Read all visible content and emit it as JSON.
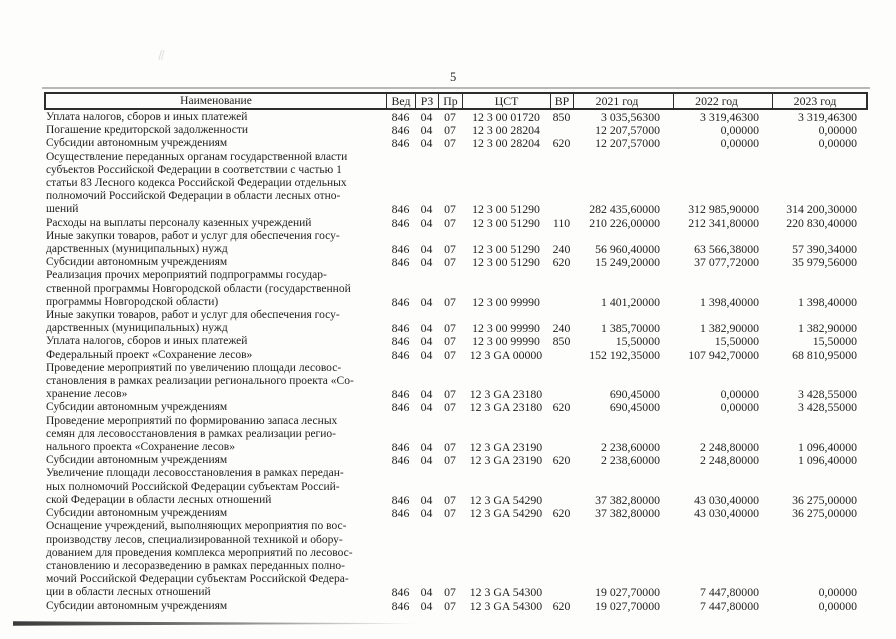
{
  "page": {
    "number": "5"
  },
  "table": {
    "columns": [
      {
        "key": "name",
        "label": "Наименование"
      },
      {
        "key": "ved",
        "label": "Вед"
      },
      {
        "key": "rz",
        "label": "РЗ"
      },
      {
        "key": "pr",
        "label": "Пр"
      },
      {
        "key": "cst",
        "label": "ЦСТ"
      },
      {
        "key": "vr",
        "label": "ВР"
      },
      {
        "key": "y2021",
        "label": "2021 год"
      },
      {
        "key": "y2022",
        "label": "2022 год"
      },
      {
        "key": "y2023",
        "label": "2023 год"
      }
    ],
    "rows": [
      {
        "name": "Уплата налогов, сборов и иных платежей",
        "ved": "846",
        "rz": "04",
        "pr": "07",
        "cst": "12 3 00 01720",
        "vr": "850",
        "y2021": "3 035,56300",
        "y2022": "3 319,46300",
        "y2023": "3 319,46300"
      },
      {
        "name": "Погашение кредиторской задолженности",
        "ved": "846",
        "rz": "04",
        "pr": "07",
        "cst": "12 3 00 28204",
        "vr": "",
        "y2021": "12 207,57000",
        "y2022": "0,00000",
        "y2023": "0,00000"
      },
      {
        "name": "Субсидии автономным учреждениям",
        "ved": "846",
        "rz": "04",
        "pr": "07",
        "cst": "12 3 00 28204",
        "vr": "620",
        "y2021": "12 207,57000",
        "y2022": "0,00000",
        "y2023": "0,00000"
      },
      {
        "name": "Осуществление переданных органам государственной власти\nсубъектов Российской Федерации в соответствии с частью 1\nстатьи 83 Лесного кодекса Российской Федерации отдельных\nполномочий Российской Федерации в области лесных отно-\nшений",
        "ved": "846",
        "rz": "04",
        "pr": "07",
        "cst": "12 3 00 51290",
        "vr": "",
        "y2021": "282 435,60000",
        "y2022": "312 985,90000",
        "y2023": "314 200,30000"
      },
      {
        "name": "Расходы на выплаты персоналу казенных учреждений",
        "ved": "846",
        "rz": "04",
        "pr": "07",
        "cst": "12 3 00 51290",
        "vr": "110",
        "y2021": "210 226,00000",
        "y2022": "212 341,80000",
        "y2023": "220 830,40000"
      },
      {
        "name": "Иные закупки товаров, работ и услуг для обеспечения госу-\nдарственных (муниципальных) нужд",
        "ved": "846",
        "rz": "04",
        "pr": "07",
        "cst": "12 3 00 51290",
        "vr": "240",
        "y2021": "56 960,40000",
        "y2022": "63 566,38000",
        "y2023": "57 390,34000"
      },
      {
        "name": "Субсидии автономным учреждениям",
        "ved": "846",
        "rz": "04",
        "pr": "07",
        "cst": "12 3 00 51290",
        "vr": "620",
        "y2021": "15 249,20000",
        "y2022": "37 077,72000",
        "y2023": "35 979,56000"
      },
      {
        "name": "Реализация прочих мероприятий подпрограммы государ-\nственной программы Новгородской области (государственной\nпрограммы Новгородской области)",
        "ved": "846",
        "rz": "04",
        "pr": "07",
        "cst": "12 3 00 99990",
        "vr": "",
        "y2021": "1 401,20000",
        "y2022": "1 398,40000",
        "y2023": "1 398,40000"
      },
      {
        "name": "Иные закупки товаров, работ и услуг для обеспечения госу-\nдарственных (муниципальных) нужд",
        "ved": "846",
        "rz": "04",
        "pr": "07",
        "cst": "12 3 00 99990",
        "vr": "240",
        "y2021": "1 385,70000",
        "y2022": "1 382,90000",
        "y2023": "1 382,90000"
      },
      {
        "name": "Уплата налогов, сборов и иных платежей",
        "ved": "846",
        "rz": "04",
        "pr": "07",
        "cst": "12 3 00 99990",
        "vr": "850",
        "y2021": "15,50000",
        "y2022": "15,50000",
        "y2023": "15,50000"
      },
      {
        "name": "Федеральный проект «Сохранение лесов»",
        "ved": "846",
        "rz": "04",
        "pr": "07",
        "cst": "12 3 GA 00000",
        "vr": "",
        "y2021": "152 192,35000",
        "y2022": "107 942,70000",
        "y2023": "68 810,95000"
      },
      {
        "name": "Проведение мероприятий по увеличению площади лесовос-\nстановления в рамках реализации регионального проекта «Со-\nхранение лесов»",
        "ved": "846",
        "rz": "04",
        "pr": "07",
        "cst": "12 3 GA 23180",
        "vr": "",
        "y2021": "690,45000",
        "y2022": "0,00000",
        "y2023": "3 428,55000"
      },
      {
        "name": "Субсидии автономным учреждениям",
        "ved": "846",
        "rz": "04",
        "pr": "07",
        "cst": "12 3 GA 23180",
        "vr": "620",
        "y2021": "690,45000",
        "y2022": "0,00000",
        "y2023": "3 428,55000"
      },
      {
        "name": "Проведение мероприятий по формированию запаса лесных\nсемян для лесовосстановления в рамках реализации регио-\nнального проекта «Сохранение лесов»",
        "ved": "846",
        "rz": "04",
        "pr": "07",
        "cst": "12 3 GA 23190",
        "vr": "",
        "y2021": "2 238,60000",
        "y2022": "2 248,80000",
        "y2023": "1 096,40000"
      },
      {
        "name": "Субсидии автономным учреждениям",
        "ved": "846",
        "rz": "04",
        "pr": "07",
        "cst": "12 3 GA 23190",
        "vr": "620",
        "y2021": "2 238,60000",
        "y2022": "2 248,80000",
        "y2023": "1 096,40000"
      },
      {
        "name": "Увеличение площади лесовосстановления в рамках передан-\nных полномочий Российской Федерации субъектам Россий-\nской Федерации в области лесных отношений",
        "ved": "846",
        "rz": "04",
        "pr": "07",
        "cst": "12 3 GA 54290",
        "vr": "",
        "y2021": "37 382,80000",
        "y2022": "43 030,40000",
        "y2023": "36 275,00000"
      },
      {
        "name": "Субсидии автономным учреждениям",
        "ved": "846",
        "rz": "04",
        "pr": "07",
        "cst": "12 3 GA 54290",
        "vr": "620",
        "y2021": "37 382,80000",
        "y2022": "43 030,40000",
        "y2023": "36 275,00000"
      },
      {
        "name": "Оснащение учреждений, выполняющих мероприятия по вос-\nпроизводству лесов, специализированной техникой и обору-\nдованием для проведения комплекса мероприятий по лесовос-\nстановлению и лесоразведению в рамках переданных полно-\nмочий Российской Федерации субъектам Российской Федера-\nции в области лесных отношений",
        "ved": "846",
        "rz": "04",
        "pr": "07",
        "cst": "12 3 GA 54300",
        "vr": "",
        "y2021": "19 027,70000",
        "y2022": "7 447,80000",
        "y2023": "0,00000"
      },
      {
        "name": "Субсидии автономным учреждениям",
        "ved": "846",
        "rz": "04",
        "pr": "07",
        "cst": "12 3 GA 54300",
        "vr": "620",
        "y2021": "19 027,70000",
        "y2022": "7 447,80000",
        "y2023": "0,00000"
      }
    ]
  }
}
